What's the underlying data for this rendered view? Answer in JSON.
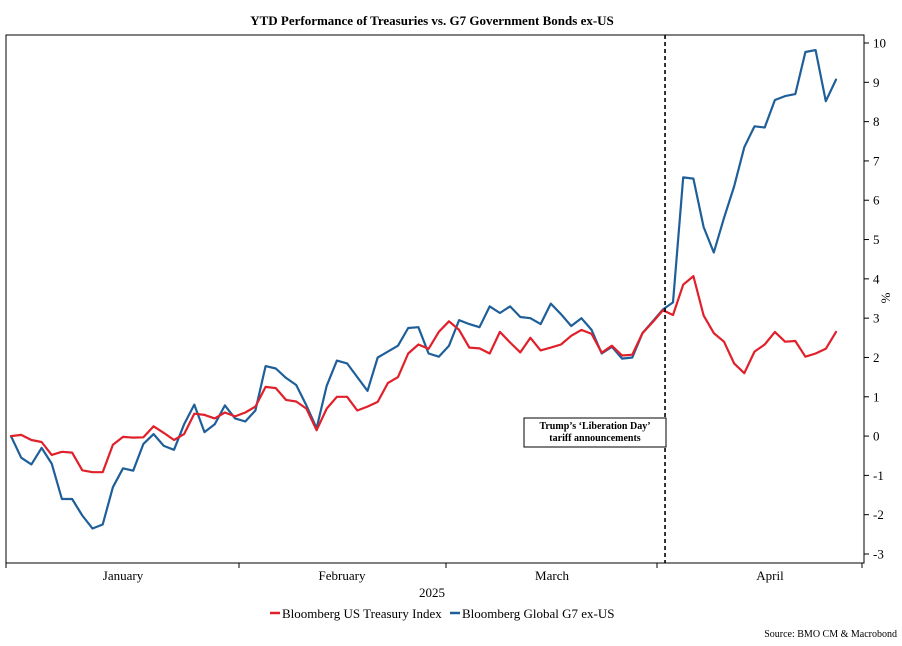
{
  "chart_data": {
    "type": "line",
    "title": "YTD Performance of Treasuries vs. G7 Government Bonds ex-US",
    "xlabel": "2025",
    "ylabel": "%",
    "x_tick_labels": [
      "January",
      "February",
      "March",
      "April"
    ],
    "ylim": [
      -3,
      10
    ],
    "yticks": [
      -3,
      -2,
      -1,
      0,
      1,
      2,
      3,
      4,
      5,
      6,
      7,
      8,
      9,
      10
    ],
    "grid": false,
    "legend_position": "bottom",
    "annotation": {
      "line1": "Trump’s ‘Liberation Day’",
      "line2": "tariff announcements",
      "x_index": 65
    },
    "source": "Source: BMO CM & Macrobond",
    "series": [
      {
        "name": "Bloomberg US Treasury Index",
        "color": "#e0202a",
        "values": [
          0,
          0.03,
          -0.1,
          -0.15,
          -0.48,
          -0.4,
          -0.42,
          -0.87,
          -0.92,
          -0.92,
          -0.22,
          -0.02,
          -0.04,
          -0.03,
          0.25,
          0.08,
          -0.1,
          0.05,
          0.57,
          0.54,
          0.45,
          0.6,
          0.5,
          0.6,
          0.75,
          1.25,
          1.22,
          0.92,
          0.88,
          0.7,
          0.15,
          0.7,
          1.0,
          1.0,
          0.65,
          0.75,
          0.87,
          1.35,
          1.5,
          2.1,
          2.33,
          2.22,
          2.65,
          2.92,
          2.7,
          2.25,
          2.23,
          2.1,
          2.65,
          2.38,
          2.13,
          2.5,
          2.18,
          2.25,
          2.33,
          2.55,
          2.7,
          2.6,
          2.12,
          2.3,
          2.05,
          2.07,
          2.62,
          2.9,
          3.2,
          3.08,
          3.85,
          4.07,
          3.07,
          2.62,
          2.4,
          1.85,
          1.6,
          2.15,
          2.33,
          2.65,
          2.4,
          2.42,
          2.02,
          2.1,
          2.22,
          2.65
        ]
      },
      {
        "name": "Bloomberg Global G7 ex-US",
        "color": "#1f5f99",
        "values": [
          0,
          -0.55,
          -0.72,
          -0.3,
          -0.7,
          -1.6,
          -1.6,
          -2.02,
          -2.35,
          -2.25,
          -1.3,
          -0.82,
          -0.88,
          -0.2,
          0.05,
          -0.25,
          -0.35,
          0.3,
          0.8,
          0.1,
          0.3,
          0.78,
          0.45,
          0.37,
          0.65,
          1.78,
          1.72,
          1.48,
          1.3,
          0.78,
          0.2,
          1.28,
          1.92,
          1.85,
          1.5,
          1.15,
          2.0,
          2.15,
          2.3,
          2.75,
          2.77,
          2.1,
          2.02,
          2.3,
          2.95,
          2.85,
          2.77,
          3.3,
          3.13,
          3.3,
          3.03,
          3.0,
          2.85,
          3.37,
          3.1,
          2.8,
          3.0,
          2.7,
          2.1,
          2.27,
          1.97,
          2.0,
          2.62,
          2.92,
          3.22,
          3.4,
          6.58,
          6.55,
          5.32,
          4.67,
          5.55,
          6.35,
          7.35,
          7.88,
          7.85,
          8.55,
          8.65,
          8.7,
          9.77,
          9.82,
          8.52,
          9.07
        ]
      }
    ]
  }
}
